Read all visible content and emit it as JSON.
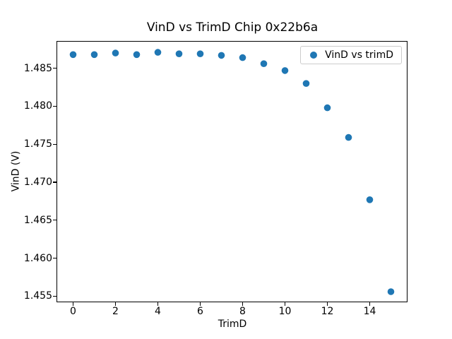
{
  "figure_title": "VinD vs TrimD Chip 0x22b6a",
  "legend": {
    "label": "VinD vs trimD"
  },
  "axes": {
    "xlabel": "TrimD",
    "ylabel": "VinD (V)"
  },
  "chart_data": {
    "type": "scatter",
    "title": "VinD vs TrimD Chip 0x22b6a",
    "xlabel": "TrimD",
    "ylabel": "VinD (V)",
    "grid": false,
    "legend_position": "upper right",
    "marker": "circle",
    "marker_color": "#1f77b4",
    "xlim": [
      -0.75,
      15.75
    ],
    "ylim": [
      1.4543,
      1.4885
    ],
    "x_ticks": [
      0,
      2,
      4,
      6,
      8,
      10,
      12,
      14
    ],
    "y_ticks": [
      1.455,
      1.46,
      1.465,
      1.47,
      1.475,
      1.48,
      1.485
    ],
    "y_tick_decimals": 3,
    "series": [
      {
        "name": "VinD vs trimD",
        "color": "#1f77b4",
        "x": [
          0,
          1,
          2,
          3,
          4,
          5,
          6,
          7,
          8,
          9,
          10,
          11,
          12,
          13,
          14,
          15
        ],
        "y": [
          1.4868,
          1.4868,
          1.487,
          1.4868,
          1.4871,
          1.4869,
          1.4869,
          1.4867,
          1.4864,
          1.4856,
          1.4847,
          1.483,
          1.4798,
          1.4759,
          1.4677,
          1.4556
        ]
      }
    ]
  }
}
